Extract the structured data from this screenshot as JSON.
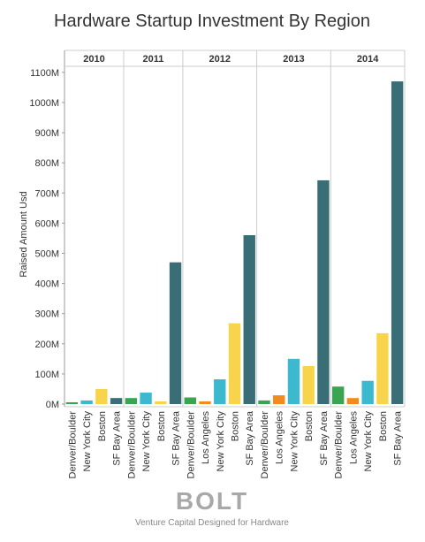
{
  "chart_data": {
    "type": "bar",
    "title": "Hardware Startup Investment By Region",
    "y_label": "Raised Amount Usd",
    "ylim": [
      0,
      1120
    ],
    "yticks": [
      {
        "value": 0,
        "label": "0M"
      },
      {
        "value": 100,
        "label": "100M"
      },
      {
        "value": 200,
        "label": "200M"
      },
      {
        "value": 300,
        "label": "300M"
      },
      {
        "value": 400,
        "label": "400M"
      },
      {
        "value": 500,
        "label": "500M"
      },
      {
        "value": 600,
        "label": "600M"
      },
      {
        "value": 700,
        "label": "700M"
      },
      {
        "value": 800,
        "label": "800M"
      },
      {
        "value": 900,
        "label": "900M"
      },
      {
        "value": 1000,
        "label": "1000M"
      },
      {
        "value": 1100,
        "label": "1100M"
      }
    ],
    "category_colors": {
      "Denver/Boulder": "#3aa551",
      "Los Angeles": "#f28a1e",
      "New York City": "#3cb8cf",
      "Boston": "#f8d44c",
      "SF Bay Area": "#3a6e77"
    },
    "facets": [
      {
        "name": "2010",
        "categories": [
          "Denver/Boulder",
          "New York City",
          "Boston",
          "SF Bay Area"
        ],
        "values": [
          6,
          12,
          50,
          20
        ]
      },
      {
        "name": "2011",
        "categories": [
          "Denver/Boulder",
          "New York City",
          "Boston",
          "SF Bay Area"
        ],
        "values": [
          20,
          38,
          9,
          470
        ]
      },
      {
        "name": "2012",
        "categories": [
          "Denver/Boulder",
          "Los Angeles",
          "New York City",
          "Boston",
          "SF Bay Area"
        ],
        "values": [
          22,
          9,
          82,
          268,
          560
        ]
      },
      {
        "name": "2013",
        "categories": [
          "Denver/Boulder",
          "Los Angeles",
          "New York City",
          "Boston",
          "SF Bay Area"
        ],
        "values": [
          12,
          29,
          150,
          126,
          742
        ]
      },
      {
        "name": "2014",
        "categories": [
          "Denver/Boulder",
          "Los Angeles",
          "New York City",
          "Boston",
          "SF Bay Area"
        ],
        "values": [
          58,
          20,
          77,
          235,
          1070
        ]
      }
    ]
  },
  "footer": {
    "logo": "BOLT",
    "tagline": "Venture Capital Designed for Hardware"
  }
}
